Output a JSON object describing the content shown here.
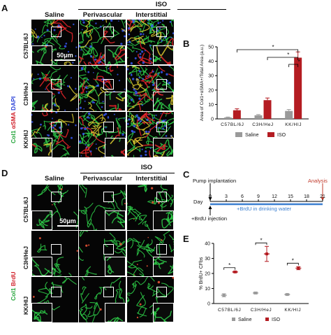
{
  "panels": {
    "A": {
      "letter": "A",
      "group_header": "ISO",
      "columns": [
        "Saline",
        "Perivascular",
        "Interstitial"
      ],
      "rows": [
        "C57BL/6J",
        "C3H/HeJ",
        "KK/HIJ"
      ],
      "stain": {
        "a": "Col1",
        "b": " αSMA",
        "c": " DAPI"
      },
      "scale_bar": "50μm"
    },
    "D": {
      "letter": "D",
      "group_header": "ISO",
      "columns": [
        "Saline",
        "Perivascular",
        "Interstitial"
      ],
      "rows": [
        "C57BL/6J",
        "C3H/HeJ",
        "KK/HIJ"
      ],
      "stain": {
        "a": "Col1",
        "b": " BrdU"
      },
      "scale_bar": "50μm"
    },
    "B": {
      "letter": "B"
    },
    "C": {
      "letter": "C",
      "pump_label": "Pump implantation",
      "analysis_label": "Analysis",
      "day_label": "Day",
      "days": [
        "0",
        "3",
        "6",
        "9",
        "12",
        "15",
        "18",
        "21"
      ],
      "brdu_water": "+BrdU in drinking water",
      "brdu_injection": "+BrdU injection"
    },
    "E": {
      "letter": "E"
    }
  },
  "colors": {
    "col1": "#2fd24a",
    "asma": "#e8262a",
    "dapi": "#3a5cff",
    "iso": "#b41c22",
    "saline": "#9a9a9a",
    "day_line": "#3b7fd0",
    "analysis": "#c0392b"
  },
  "chart_data": [
    {
      "panel": "B",
      "type": "bar",
      "categories": [
        "C57BL/6J",
        "C3H/HeJ",
        "KK/HIJ"
      ],
      "series": [
        {
          "name": "Saline",
          "values": [
            1.0,
            2.5,
            5.5
          ],
          "errors": [
            0.3,
            0.5,
            1.0
          ]
        },
        {
          "name": "ISO",
          "values": [
            6.0,
            13.0,
            42.5
          ],
          "errors": [
            1.0,
            1.5,
            4.0
          ]
        }
      ],
      "ylabel": "Area of Col1+αSMA+/Total Area (a.u.)",
      "yticks": [
        "0",
        "10",
        "20",
        "30",
        "40",
        "50"
      ],
      "ylim": [
        0,
        50
      ],
      "significance": [
        "*",
        "*",
        "*"
      ],
      "legend": "bottom"
    },
    {
      "panel": "E",
      "type": "scatter",
      "categories": [
        "C57BL/6J",
        "C3H/HeJ",
        "KK/HIJ"
      ],
      "series": [
        {
          "name": "Saline",
          "values": [
            5.5,
            7.0,
            6.0
          ],
          "errors": [
            1.0,
            0.6,
            0.5
          ]
        },
        {
          "name": "ISO",
          "values": [
            21.0,
            33.0,
            23.5
          ],
          "errors": [
            0.5,
            5.0,
            1.0
          ]
        }
      ],
      "ylabel": "% BrdU+ CFbs",
      "yticks": [
        "0",
        "10",
        "20",
        "30",
        "40"
      ],
      "ylim": [
        0,
        40
      ],
      "significance": [
        "*",
        "*",
        "*"
      ],
      "legend": "bottom"
    }
  ]
}
